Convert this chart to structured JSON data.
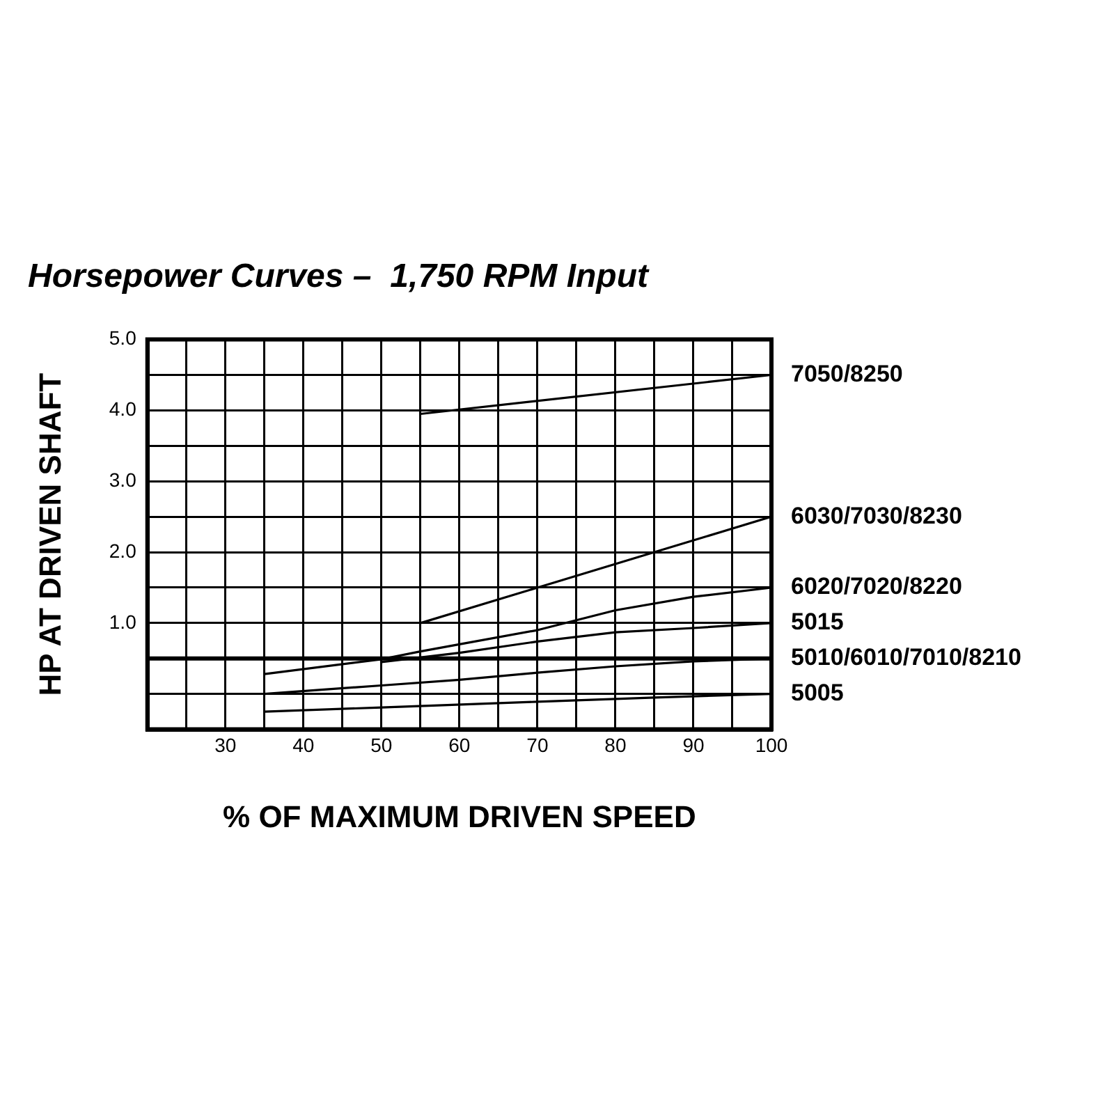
{
  "chart_data": {
    "type": "line",
    "title": "Horsepower Curves –  1,750 RPM Input",
    "xlabel": "% OF MAXIMUM DRIVEN SPEED",
    "ylabel": "HP AT DRIVEN SHAFT",
    "xlim": [
      20,
      100
    ],
    "xticks": [
      {
        "value": 25,
        "label": null
      },
      30,
      {
        "value": 35,
        "label": null
      },
      40,
      {
        "value": 45,
        "label": null
      },
      50,
      {
        "value": 55,
        "label": null
      },
      60,
      {
        "value": 65,
        "label": null
      },
      70,
      {
        "value": 75,
        "label": null
      },
      80,
      {
        "value": 85,
        "label": null
      },
      90,
      {
        "value": 95,
        "label": null
      },
      100
    ],
    "ylim": [
      -0.5,
      5
    ],
    "yticks": [
      {
        "value": 0,
        "label": null
      },
      {
        "value": 0.5,
        "label": null
      },
      {
        "value": 1,
        "label": "1.0"
      },
      {
        "value": 1.5,
        "label": null
      },
      {
        "value": 2,
        "label": "2.0"
      },
      {
        "value": 2.5,
        "label": null
      },
      {
        "value": 3,
        "label": "3.0"
      },
      {
        "value": 3.5,
        "label": null
      },
      {
        "value": 4,
        "label": "4.0"
      },
      {
        "value": 4.5,
        "label": null
      },
      {
        "value": 5,
        "label": "5.0"
      }
    ],
    "grid": true,
    "legend": false,
    "marker": "none",
    "line_style": "solid",
    "ref_lines": [
      {
        "axis": "y",
        "value": 0.5,
        "color": "#000000"
      }
    ],
    "series": [
      {
        "name": "7050/8250",
        "color": "#000000",
        "x": [
          55,
          100
        ],
        "values": [
          3.95,
          4.5
        ]
      },
      {
        "name": "6030/7030/8230",
        "color": "#000000",
        "x": [
          55,
          70,
          85,
          100
        ],
        "values": [
          1.0,
          1.5,
          2.0,
          2.5
        ]
      },
      {
        "name": "6020/7020/8220",
        "color": "#000000",
        "x": [
          35,
          50,
          55,
          60,
          70,
          80,
          90,
          100
        ],
        "values": [
          0.28,
          0.49,
          0.6,
          0.7,
          0.9,
          1.18,
          1.37,
          1.5
        ]
      },
      {
        "name": "5015",
        "color": "#000000",
        "x": [
          50,
          60,
          70,
          80,
          90,
          100
        ],
        "values": [
          0.45,
          0.58,
          0.74,
          0.87,
          0.93,
          1.0
        ]
      },
      {
        "name": "5010/6010/7010/8210",
        "color": "#000000",
        "x": [
          35,
          50,
          60,
          70,
          80,
          90,
          100
        ],
        "values": [
          0.0,
          0.12,
          0.2,
          0.3,
          0.39,
          0.46,
          0.5
        ]
      },
      {
        "name": "5005",
        "color": "#000000",
        "x": [
          35,
          50,
          70,
          85,
          100
        ],
        "values": [
          -0.25,
          -0.19,
          -0.11,
          -0.05,
          0.0
        ]
      }
    ]
  }
}
